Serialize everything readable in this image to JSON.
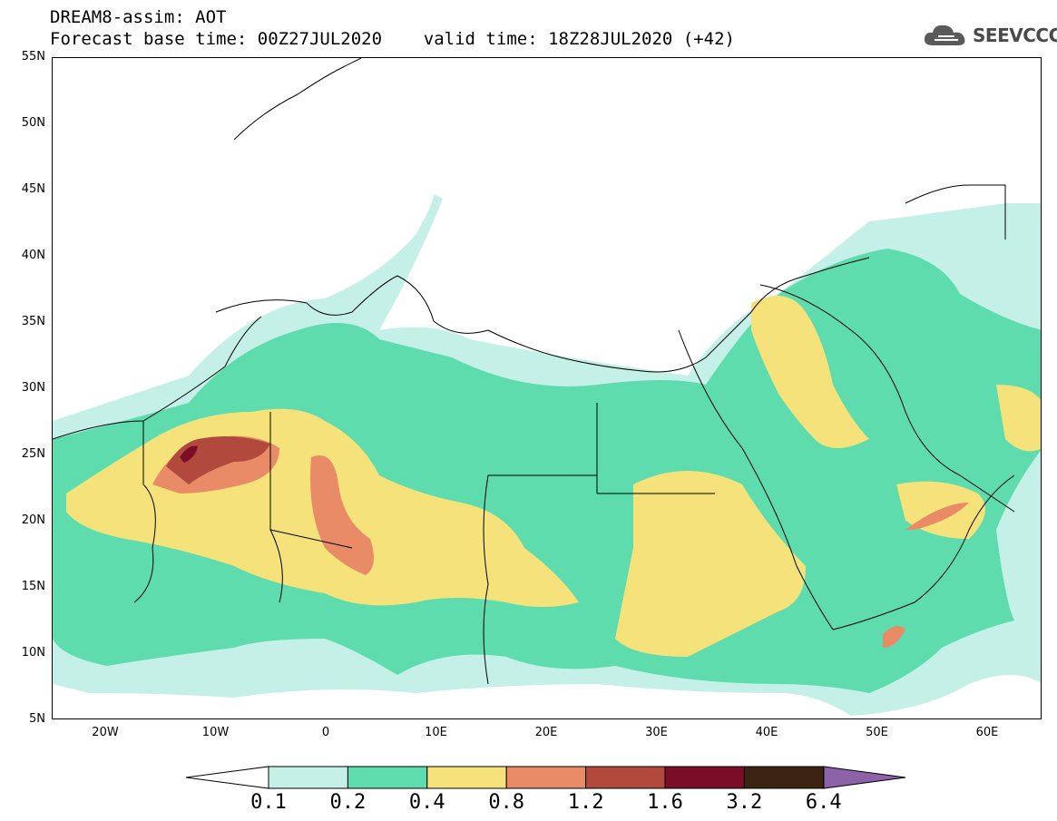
{
  "header": {
    "title": "DREAM8-assim: AOT",
    "base_time_line": "Forecast base time: 00Z27JUL2020    valid time: 18Z28JUL2020 (+42)"
  },
  "logo": {
    "text": "SEEVCCC",
    "icon": "cloud-icon"
  },
  "map": {
    "lat_labels": [
      "55N",
      "50N",
      "45N",
      "40N",
      "35N",
      "30N",
      "25N",
      "20N",
      "15N",
      "10N",
      "5N"
    ],
    "lon_labels": [
      "20W",
      "10W",
      "0",
      "10E",
      "20E",
      "30E",
      "40E",
      "50E",
      "60E"
    ]
  },
  "colorbar": {
    "labels": [
      "0.1",
      "0.2",
      "0.4",
      "0.8",
      "1.2",
      "1.6",
      "3.2",
      "6.4"
    ],
    "colors": [
      "#c4f0e8",
      "#5fdcae",
      "#f5e27a",
      "#e98b66",
      "#b14a3d",
      "#7a0d27",
      "#3d2412",
      "#8c63a8"
    ],
    "under_color": "#ffffff"
  }
}
